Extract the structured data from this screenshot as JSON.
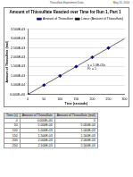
{
  "header": {
    "center": "Thiosulfate Experiment Data",
    "right": "May 20, 2014"
  },
  "chart_data": {
    "type": "scatter",
    "title": "Amount of Thiosulfate Reacted over Time for Run 1, Part 1",
    "x_label": "Time (seconds)",
    "y_label": "Amount of Thiosulfate (mol)",
    "series": [
      {
        "name": "Amount of Thiosulfate",
        "type": "scatter",
        "color": "#000080",
        "marker": "diamond",
        "x": [
          0,
          50,
          100,
          150,
          200,
          250
        ],
        "values": [
          0,
          0.0005,
          0.001,
          0.0015,
          0.002,
          0.0025
        ]
      },
      {
        "name": "Linear (Amount of Thiosulfate)",
        "type": "line",
        "color": "#000000",
        "line_style": "solid",
        "x": [
          0,
          300
        ],
        "values": [
          0,
          0.003
        ]
      }
    ],
    "annotations": [
      "y = 1.0E-05x",
      "R² = 1"
    ],
    "xlim": [
      0,
      300
    ],
    "xticks": [
      0,
      50,
      100,
      150,
      200,
      250,
      300
    ],
    "ylim": [
      0,
      0.0035
    ],
    "yticks": [
      {
        "value": 0,
        "label": "0.000E+00"
      },
      {
        "value": 0.0005,
        "label": "5.000E-04"
      },
      {
        "value": 0.001,
        "label": "1.000E-03"
      },
      {
        "value": 0.0015,
        "label": "1.500E-03"
      },
      {
        "value": 0.002,
        "label": "2.000E-03"
      },
      {
        "value": 0.0025,
        "label": "2.500E-03"
      },
      {
        "value": 0.003,
        "label": "3.000E-03"
      },
      {
        "value": 0.0035,
        "label": "3.500E-03"
      }
    ],
    "grid": true,
    "legend": "top-right"
  },
  "table": {
    "header": [
      "Time (s)",
      "Amount of Thiosulfate",
      "Amount of Thiosulfate (mol)"
    ],
    "rows": [
      [
        "0",
        "0.000E+00",
        "0"
      ],
      [
        "50",
        "5.000E-04",
        "5.000E-04"
      ],
      [
        "100",
        "1.000E-03",
        "1.000E-03"
      ],
      [
        "150",
        "1.500E-03",
        "1.500E-03"
      ],
      [
        "200",
        "2.000E-03",
        "2.000E-03"
      ],
      [
        "250",
        "2.500E-03",
        "2.500E-03"
      ]
    ]
  }
}
